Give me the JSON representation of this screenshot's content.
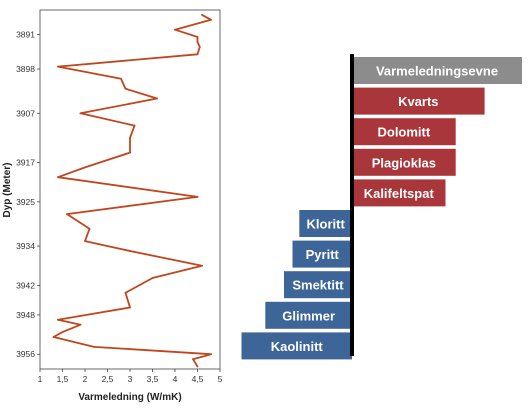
{
  "chart_data": [
    {
      "type": "line",
      "orientation": "vertical-depth",
      "xlabel": "Varmeledning (W/mK)",
      "ylabel": "Dyp (Meter)",
      "xlim": [
        1,
        5
      ],
      "ylim": [
        3886,
        3959
      ],
      "y_inverted": true,
      "x_ticks": [
        "1",
        "1,5",
        "2",
        "2,5",
        "3",
        "3,5",
        "4",
        "4,5",
        "5"
      ],
      "y_ticks": [
        "3891",
        "3898",
        "3907",
        "3917",
        "3925",
        "3934",
        "3942",
        "3948",
        "3956"
      ],
      "y_tick_values": [
        3891,
        3898,
        3907,
        3917,
        3925,
        3934,
        3942,
        3948,
        3956
      ],
      "grid": false,
      "line_color": "#c0461e",
      "points": [
        {
          "x": 4.6,
          "y": 3887.0
        },
        {
          "x": 4.8,
          "y": 3888.0
        },
        {
          "x": 4.0,
          "y": 3890.0
        },
        {
          "x": 4.5,
          "y": 3891.5
        },
        {
          "x": 4.5,
          "y": 3892.5
        },
        {
          "x": 4.55,
          "y": 3893.5
        },
        {
          "x": 4.5,
          "y": 3895.0
        },
        {
          "x": 1.4,
          "y": 3897.5
        },
        {
          "x": 2.8,
          "y": 3900.0
        },
        {
          "x": 2.9,
          "y": 3902.0
        },
        {
          "x": 3.6,
          "y": 3904.0
        },
        {
          "x": 1.9,
          "y": 3907.0
        },
        {
          "x": 3.1,
          "y": 3909.5
        },
        {
          "x": 3.0,
          "y": 3912.0
        },
        {
          "x": 3.0,
          "y": 3915.0
        },
        {
          "x": 2.0,
          "y": 3918.0
        },
        {
          "x": 1.4,
          "y": 3920.0
        },
        {
          "x": 4.5,
          "y": 3924.0
        },
        {
          "x": 1.6,
          "y": 3927.5
        },
        {
          "x": 2.1,
          "y": 3930.5
        },
        {
          "x": 2.0,
          "y": 3933.0
        },
        {
          "x": 3.0,
          "y": 3935.0
        },
        {
          "x": 4.6,
          "y": 3938.0
        },
        {
          "x": 3.5,
          "y": 3940.5
        },
        {
          "x": 2.9,
          "y": 3943.5
        },
        {
          "x": 3.0,
          "y": 3946.5
        },
        {
          "x": 1.4,
          "y": 3949.0
        },
        {
          "x": 1.9,
          "y": 3950.0
        },
        {
          "x": 1.5,
          "y": 3951.5
        },
        {
          "x": 1.3,
          "y": 3952.5
        },
        {
          "x": 2.2,
          "y": 3954.5
        },
        {
          "x": 4.8,
          "y": 3956.0
        },
        {
          "x": 4.4,
          "y": 3957.0
        },
        {
          "x": 4.5,
          "y": 3958.5
        }
      ]
    },
    {
      "type": "bar",
      "orientation": "horizontal-diverging",
      "categories": [
        "Varmeledningsevne",
        "Kvarts",
        "Dolomitt",
        "Plagioklas",
        "Kalifeltspat",
        "Kloritt",
        "Pyritt",
        "Smektitt",
        "Glimmer",
        "Kaolinitt"
      ],
      "values": [
        1.0,
        0.78,
        0.61,
        0.61,
        0.55,
        -0.31,
        -0.35,
        -0.4,
        -0.51,
        -0.65
      ],
      "colors": [
        "#8c8c8c",
        "#a8363a",
        "#a8363a",
        "#a8363a",
        "#a8363a",
        "#3e6598",
        "#3e6598",
        "#3e6598",
        "#3e6598",
        "#3e6598"
      ],
      "value_labels_shown": false
    }
  ]
}
